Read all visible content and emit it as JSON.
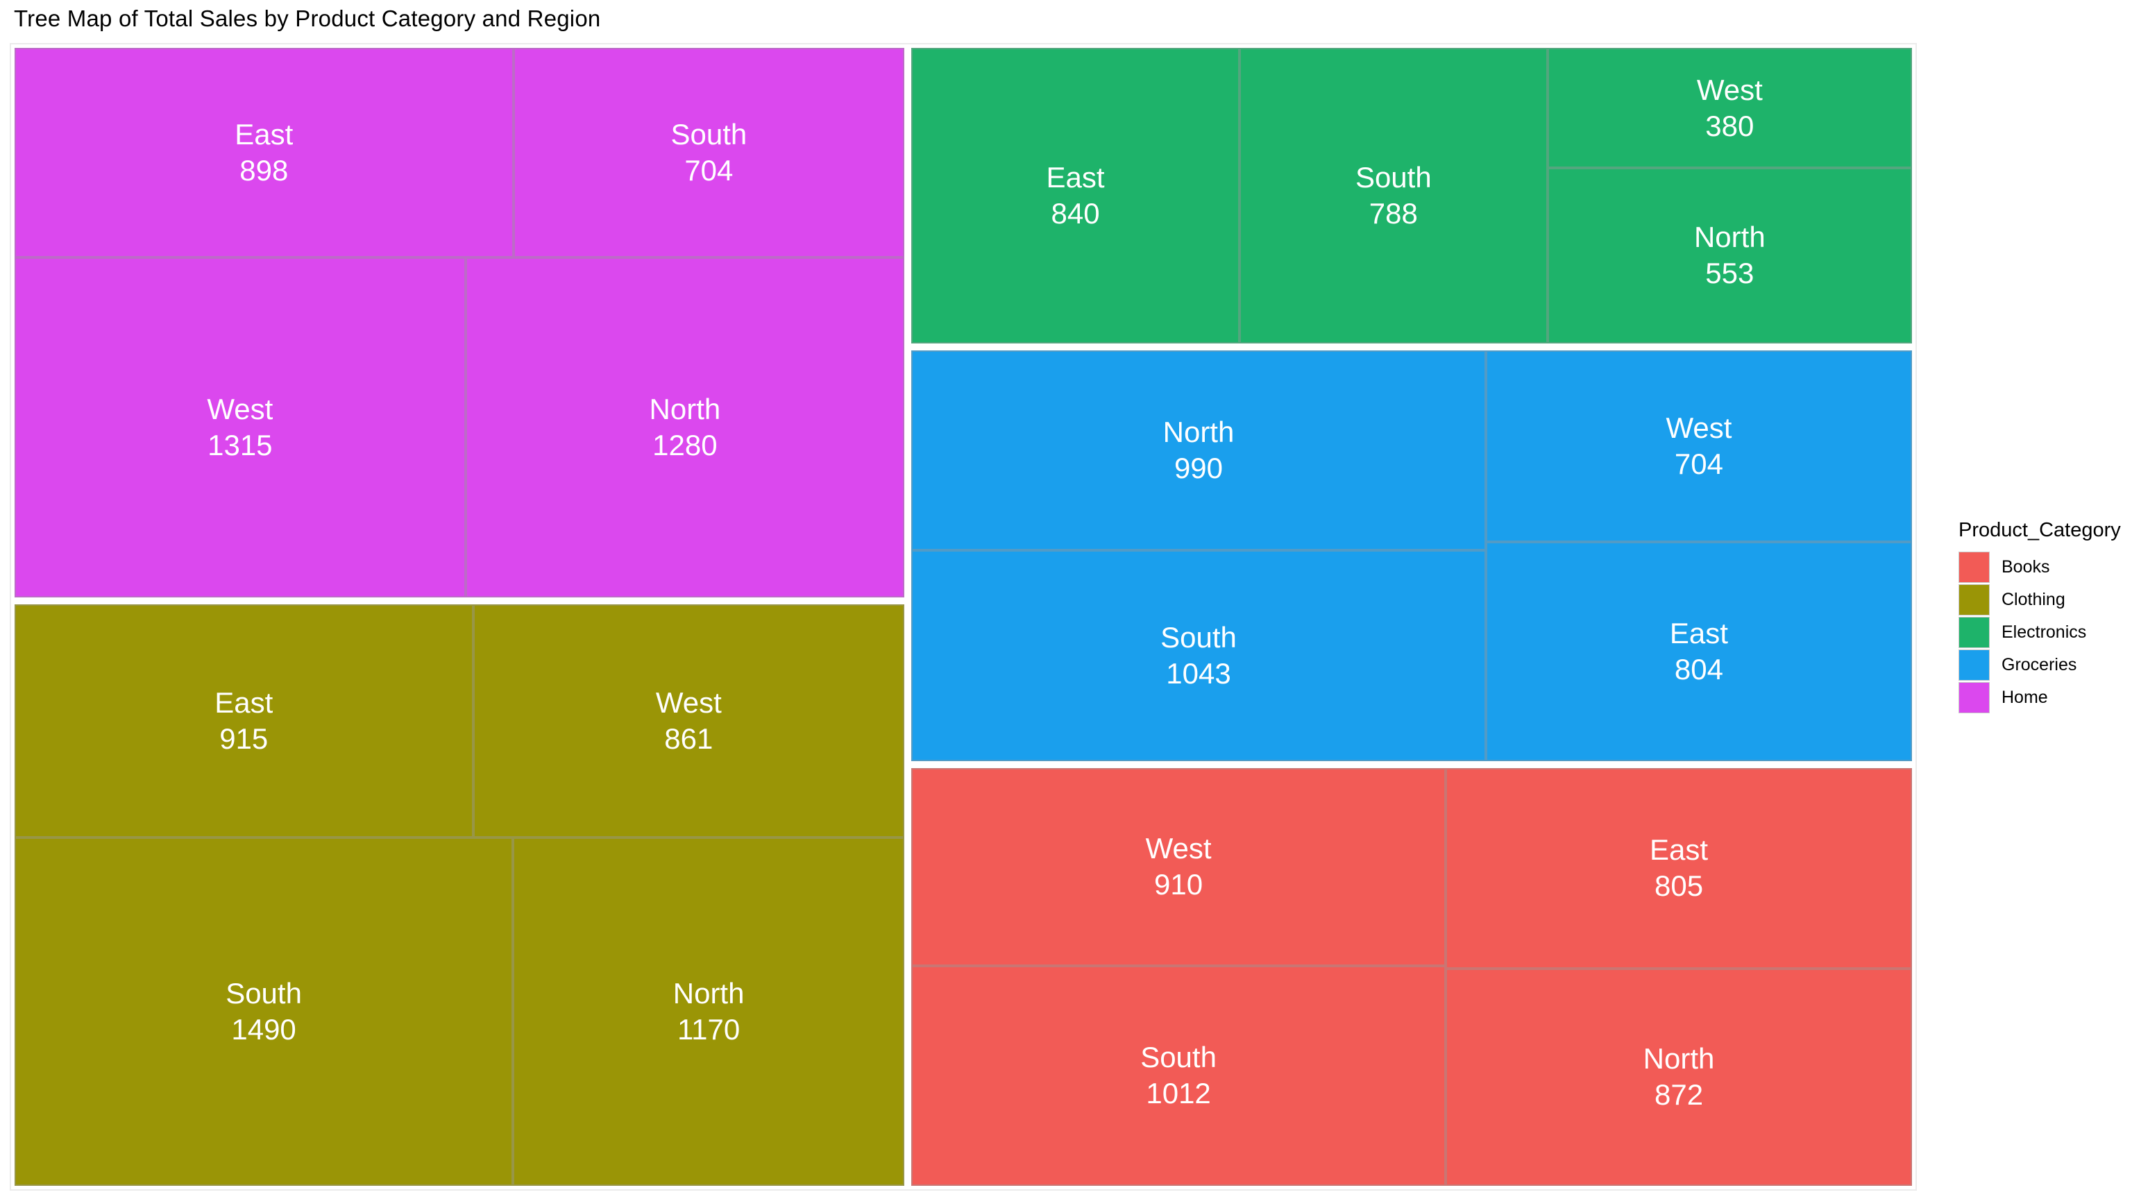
{
  "chart_data": {
    "type": "treemap",
    "title": "Tree Map of Total Sales by Product Category and Region",
    "legend_title": "Product_Category",
    "categories": [
      {
        "name": "Books",
        "color": "#F25B56",
        "regions": {
          "West": 910,
          "East": 805,
          "South": 1012,
          "North": 872
        }
      },
      {
        "name": "Clothing",
        "color": "#9A9506",
        "regions": {
          "East": 915,
          "West": 861,
          "South": 1490,
          "North": 1170
        }
      },
      {
        "name": "Electronics",
        "color": "#1EB36A",
        "regions": {
          "East": 840,
          "South": 788,
          "West": 380,
          "North": 553
        }
      },
      {
        "name": "Groceries",
        "color": "#1A9FED",
        "regions": {
          "North": 990,
          "West": 704,
          "South": 1043,
          "East": 804
        }
      },
      {
        "name": "Home",
        "color": "#DB48EE",
        "regions": {
          "East": 898,
          "South": 704,
          "West": 1315,
          "North": 1280
        }
      }
    ]
  }
}
